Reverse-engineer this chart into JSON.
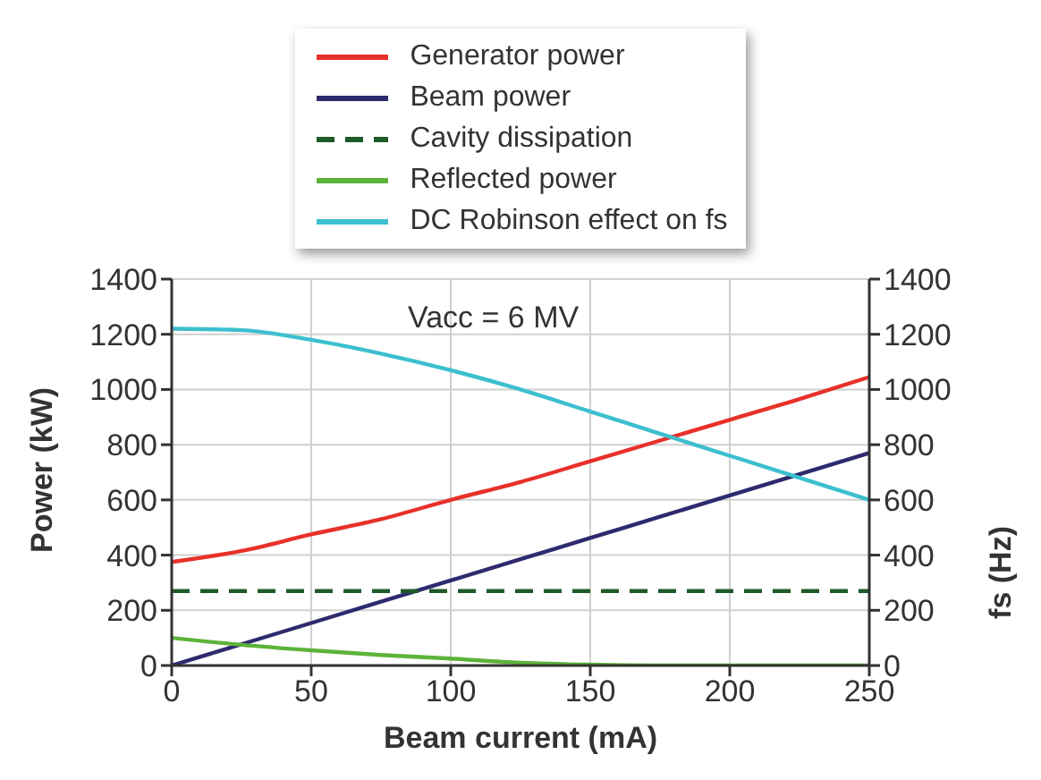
{
  "chart_data": {
    "type": "line",
    "xlabel": "Beam current (mA)",
    "ylabel": "Power (kW)",
    "y2label": "fs (Hz)",
    "annotations": [
      "Vacc = 6 MV"
    ],
    "x": [
      0,
      25,
      50,
      75,
      100,
      125,
      150,
      175,
      200,
      225,
      250
    ],
    "series": [
      {
        "name": "Generator power",
        "color": "#e8302a",
        "values": [
          375,
          415,
          475,
          530,
          600,
          665,
          740,
          815,
          890,
          965,
          1045
        ]
      },
      {
        "name": "Beam power",
        "color": "#2e2a6e",
        "values": [
          0,
          77,
          154,
          231,
          308,
          385,
          462,
          539,
          616,
          693,
          770
        ]
      },
      {
        "name": "Cavity dissipation",
        "color": "#1f5a2a",
        "line_style": "dashed",
        "values": [
          270,
          270,
          270,
          270,
          270,
          270,
          270,
          270,
          270,
          270,
          270
        ]
      },
      {
        "name": "Reflected power",
        "color": "#5db33a",
        "values": [
          100,
          75,
          55,
          38,
          25,
          10,
          3,
          0,
          0,
          0,
          0
        ]
      },
      {
        "name": "DC Robinson effect on fs",
        "color": "#3cbfcf",
        "axis": "y2",
        "values": [
          1220,
          1215,
          1180,
          1130,
          1070,
          1000,
          920,
          840,
          760,
          680,
          600
        ]
      }
    ],
    "xlim": [
      0,
      250
    ],
    "xticks": [
      0,
      50,
      100,
      150,
      200,
      250
    ],
    "ylim": [
      0,
      1400
    ],
    "yticks": [
      0,
      200,
      400,
      600,
      800,
      1000,
      1200,
      1400
    ],
    "y2lim": [
      0,
      1400
    ],
    "y2ticks": [
      0,
      200,
      400,
      600,
      800,
      1000,
      1200,
      1400
    ],
    "grid": true,
    "legend": "top",
    "marker": "none"
  }
}
